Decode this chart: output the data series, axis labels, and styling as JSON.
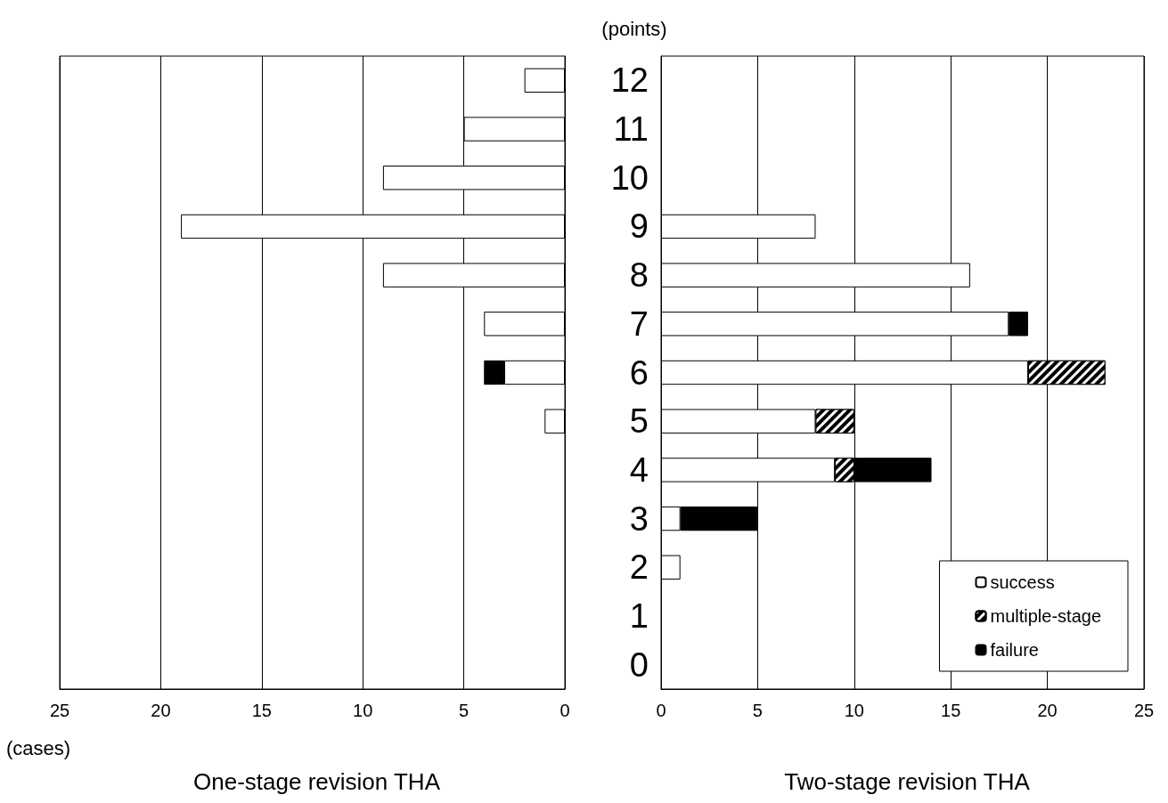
{
  "chart_data": [
    {
      "type": "bar",
      "orientation": "horizontal",
      "stacked": true,
      "title": "One-stage revision THA",
      "xlabel": "(cases)",
      "categories": [
        "12",
        "11",
        "10",
        "9",
        "8",
        "7",
        "6",
        "5",
        "4",
        "3",
        "2",
        "1",
        "0"
      ],
      "xlim": [
        25,
        0
      ],
      "xticks": [
        25,
        20,
        15,
        10,
        5,
        0
      ],
      "grid": "x",
      "legend": false,
      "tick_labels": "x",
      "series": [
        {
          "color": "#ffffff",
          "values": [
            2,
            5,
            9,
            19,
            9,
            4,
            3,
            1,
            null,
            null,
            null,
            null,
            null
          ]
        },
        {
          "color": "#000000",
          "values": [
            null,
            null,
            null,
            null,
            null,
            null,
            null,
            null,
            null,
            null,
            null,
            null,
            null
          ]
        },
        {
          "color": "#000000",
          "values": [
            null,
            null,
            null,
            null,
            null,
            null,
            1,
            null,
            null,
            null,
            null,
            null,
            null
          ]
        }
      ]
    },
    {
      "type": "bar",
      "orientation": "horizontal",
      "stacked": true,
      "title": "Two-stage revision THA",
      "ylabel": "(points)",
      "categories": [
        "12",
        "11",
        "10",
        "9",
        "8",
        "7",
        "6",
        "5",
        "4",
        "3",
        "2",
        "1",
        "0"
      ],
      "xlim": [
        0,
        25
      ],
      "xticks": [
        0,
        5,
        10,
        15,
        20,
        25
      ],
      "grid": "x",
      "legend": "bottom right",
      "series": [
        {
          "name": "success",
          "color": "#ffffff",
          "values": [
            null,
            null,
            null,
            8,
            16,
            18,
            19,
            8,
            9,
            1,
            1,
            null,
            null
          ]
        },
        {
          "name": "multiple-stage",
          "color": "#000000",
          "values": [
            null,
            null,
            null,
            null,
            null,
            null,
            4,
            2,
            1,
            null,
            null,
            null,
            null
          ]
        },
        {
          "name": "failure",
          "color": "#000000",
          "values": [
            null,
            null,
            null,
            null,
            null,
            1,
            null,
            null,
            4,
            4,
            null,
            null,
            null
          ]
        }
      ]
    }
  ]
}
